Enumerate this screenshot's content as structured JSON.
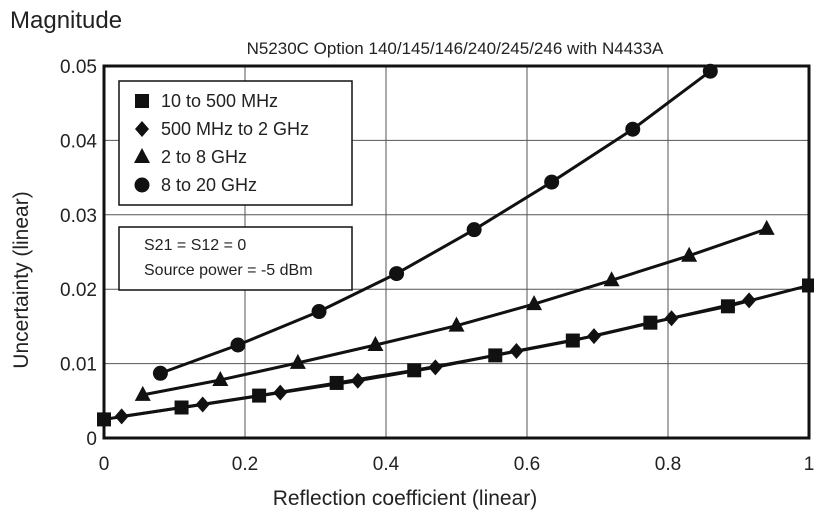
{
  "chart_data": {
    "type": "line",
    "supertitle": "Magnitude",
    "title": "N5230C Option 140/145/146/240/245/246 with N4433A",
    "xlabel": "Reflection coefficient (linear)",
    "ylabel": "Uncertainty (linear)",
    "xlim": [
      0,
      1
    ],
    "ylim": [
      0,
      0.05
    ],
    "x_ticks": [
      "0",
      "0.2",
      "0.4",
      "0.6",
      "0.8",
      "1"
    ],
    "y_ticks": [
      "0",
      "0.01",
      "0.02",
      "0.03",
      "0.04",
      "0.05"
    ],
    "grid": true,
    "legend_position": "top-left",
    "series": [
      {
        "name": "10 to 500 MHz",
        "marker": "square",
        "points": [
          [
            0.0,
            0.0025
          ],
          [
            0.11,
            0.0041
          ],
          [
            0.22,
            0.0057
          ],
          [
            0.33,
            0.0074
          ],
          [
            0.44,
            0.0091
          ],
          [
            0.555,
            0.0111
          ],
          [
            0.665,
            0.0131
          ],
          [
            0.775,
            0.0155
          ],
          [
            0.885,
            0.0177
          ],
          [
            1.0,
            0.0205
          ]
        ]
      },
      {
        "name": "500 MHz to 2 GHz",
        "marker": "diamond",
        "points": [
          [
            0.025,
            0.0029
          ],
          [
            0.14,
            0.0045
          ],
          [
            0.25,
            0.0061
          ],
          [
            0.36,
            0.0077
          ],
          [
            0.47,
            0.0095
          ],
          [
            0.585,
            0.0117
          ],
          [
            0.695,
            0.0137
          ],
          [
            0.805,
            0.0161
          ],
          [
            0.915,
            0.0185
          ]
        ]
      },
      {
        "name": "2 to 8 GHz",
        "marker": "triangle",
        "points": [
          [
            0.055,
            0.0058
          ],
          [
            0.165,
            0.0078
          ],
          [
            0.275,
            0.0101
          ],
          [
            0.385,
            0.0125
          ],
          [
            0.5,
            0.0151
          ],
          [
            0.61,
            0.018
          ],
          [
            0.72,
            0.0212
          ],
          [
            0.83,
            0.0245
          ],
          [
            0.94,
            0.0281
          ]
        ]
      },
      {
        "name": "8 to 20 GHz",
        "marker": "circle",
        "points": [
          [
            0.08,
            0.0087
          ],
          [
            0.19,
            0.0125
          ],
          [
            0.305,
            0.017
          ],
          [
            0.415,
            0.0221
          ],
          [
            0.525,
            0.028
          ],
          [
            0.635,
            0.0344
          ],
          [
            0.75,
            0.0415
          ],
          [
            0.86,
            0.0493
          ]
        ]
      }
    ],
    "annotation": [
      "S21 = S12 = 0",
      "Source power = -5 dBm"
    ]
  }
}
